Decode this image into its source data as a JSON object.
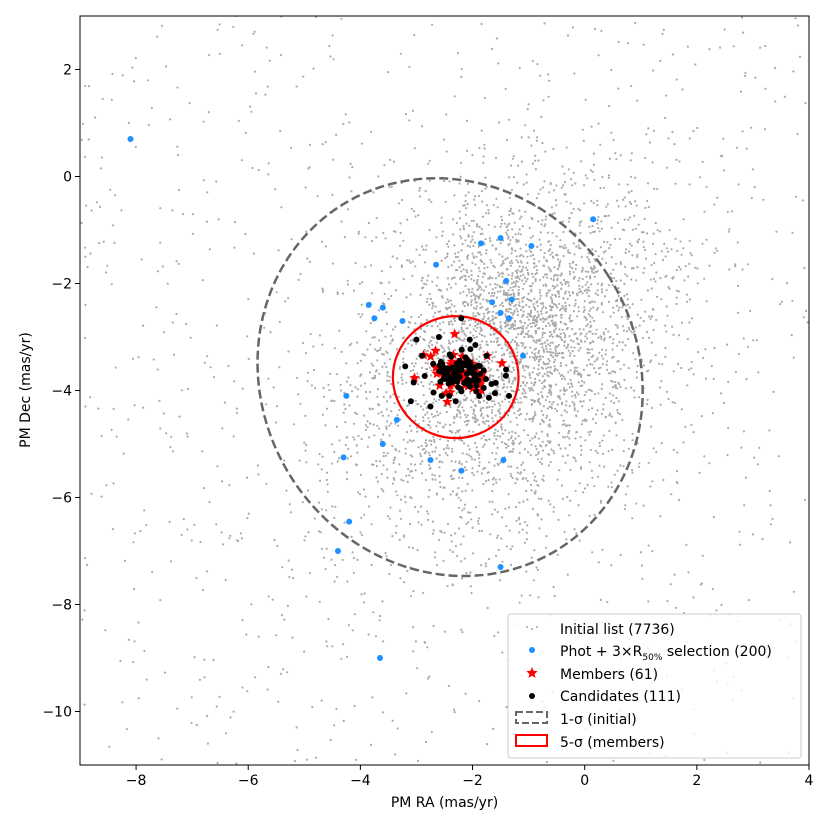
{
  "chart_data": {
    "type": "scatter",
    "xlabel": "PM RA (mas/yr)",
    "ylabel": "PM Dec (mas/yr)",
    "xlim": [
      -9.0,
      4.0
    ],
    "ylim": [
      -11.0,
      3.0
    ],
    "xticks": [
      -8,
      -6,
      -4,
      -2,
      0,
      2,
      4
    ],
    "yticks": [
      2,
      0,
      -2,
      -4,
      -6,
      -8,
      -10
    ],
    "xtick_labels": [
      "−8",
      "−6",
      "−4",
      "−2",
      "0",
      "2",
      "4"
    ],
    "ytick_labels": [
      "2",
      "0",
      "−2",
      "−4",
      "−6",
      "−8",
      "−10"
    ],
    "grid": false,
    "legend_position": "lower right",
    "legend": [
      {
        "label": "Initial list (7736)",
        "marker": "small-dot",
        "color": "#aaaaaa"
      },
      {
        "label_parts": [
          "Phot + 3×R",
          "50%",
          " selection (200)"
        ],
        "marker": "dot",
        "color": "#1e90ff"
      },
      {
        "label": "Members (61)",
        "marker": "star",
        "color": "#ff0000"
      },
      {
        "label": "Candidates (111)",
        "marker": "dot",
        "color": "#000000"
      },
      {
        "label": "1-σ (initial)",
        "marker": "dashed-box",
        "color": "#666666"
      },
      {
        "label": "5-σ (members)",
        "marker": "box",
        "color": "#ff0000"
      }
    ],
    "series": [
      {
        "name": "Initial list (7736)",
        "color": "#aaaaaa",
        "count": 7736,
        "distribution": {
          "center": [
            -1.3,
            -3.5
          ],
          "spread": [
            2.3,
            2.3
          ]
        }
      },
      {
        "name": "Phot + 3×R50% selection (200)",
        "color": "#1e90ff",
        "points": [
          [
            -8.1,
            0.7
          ],
          [
            -3.65,
            -9.0
          ],
          [
            -4.4,
            -7.0
          ],
          [
            -4.2,
            -6.45
          ],
          [
            -4.3,
            -5.25
          ],
          [
            -3.6,
            -5.0
          ],
          [
            -4.25,
            -4.1
          ],
          [
            -3.85,
            -2.4
          ],
          [
            -3.75,
            -2.65
          ],
          [
            -3.6,
            -2.45
          ],
          [
            -3.25,
            -2.7
          ],
          [
            -3.35,
            -4.55
          ],
          [
            -2.75,
            -5.3
          ],
          [
            -2.65,
            -1.65
          ],
          [
            -2.2,
            -5.5
          ],
          [
            -1.85,
            -1.25
          ],
          [
            -1.5,
            -1.15
          ],
          [
            -1.65,
            -2.35
          ],
          [
            -1.5,
            -2.55
          ],
          [
            -1.4,
            -1.95
          ],
          [
            -1.3,
            -2.3
          ],
          [
            -1.35,
            -2.65
          ],
          [
            -1.1,
            -3.35
          ],
          [
            -1.45,
            -5.3
          ],
          [
            -1.5,
            -7.3
          ],
          [
            -0.95,
            -1.3
          ],
          [
            0.15,
            -0.8
          ]
        ]
      },
      {
        "name": "Members (61)",
        "color": "#ff0000",
        "center": [
          -2.2,
          -3.7
        ],
        "count": 61
      },
      {
        "name": "Candidates (111)",
        "color": "#000000",
        "center": [
          -2.2,
          -3.7
        ],
        "count": 111,
        "extra_points": [
          [
            -2.2,
            -2.65
          ],
          [
            -2.6,
            -3.0
          ],
          [
            -2.05,
            -3.05
          ],
          [
            -3.0,
            -3.05
          ],
          [
            -2.9,
            -3.35
          ],
          [
            -3.2,
            -3.55
          ],
          [
            -3.05,
            -3.85
          ],
          [
            -3.1,
            -4.2
          ],
          [
            -2.75,
            -4.3
          ],
          [
            -2.55,
            -4.1
          ],
          [
            -2.3,
            -4.2
          ],
          [
            -1.75,
            -3.35
          ],
          [
            -1.8,
            -3.95
          ],
          [
            -1.6,
            -4.05
          ],
          [
            -1.35,
            -4.1
          ],
          [
            -1.95,
            -3.15
          ]
        ]
      }
    ],
    "ellipses": [
      {
        "name": "1-σ (initial)",
        "center": [
          -2.4,
          -3.75
        ],
        "semi_axes": [
          3.35,
          3.8
        ],
        "angle_deg": 33,
        "style": "dashed",
        "color": "#666666"
      },
      {
        "name": "5-σ (members)",
        "center": [
          -2.3,
          -3.75
        ],
        "semi_axes": [
          1.12,
          1.14
        ],
        "angle_deg": 0,
        "style": "solid",
        "color": "#ff0000"
      }
    ]
  }
}
